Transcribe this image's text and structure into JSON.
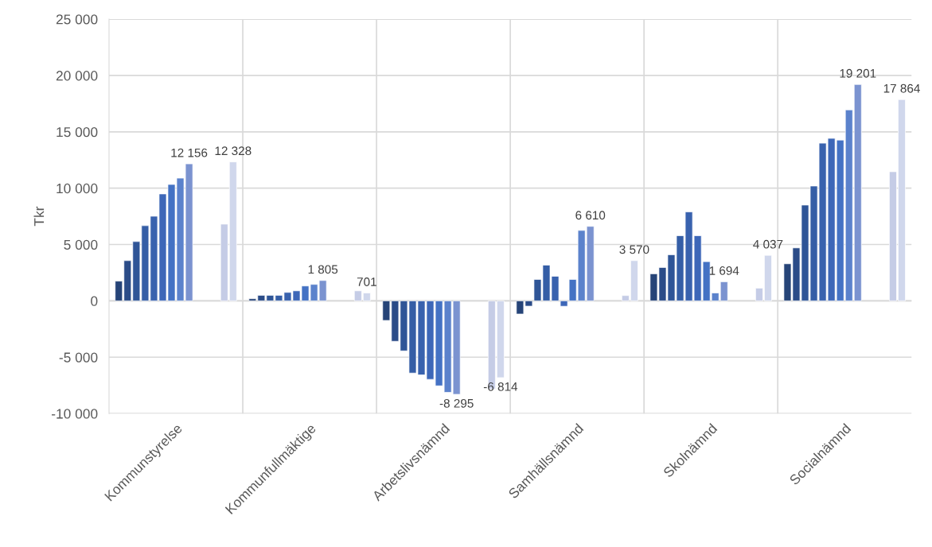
{
  "chart_data": {
    "type": "bar",
    "ylabel": "Tkr",
    "categories": [
      "Kommunstyrelse",
      "Kommunfullmäktige",
      "Arbetslivsnämnd",
      "Samhällsnämnd",
      "Skolnämnd",
      "Socialnämnd"
    ],
    "series": [
      {
        "color": "#264478",
        "values": [
          1750,
          190,
          -1740,
          -1170,
          2400,
          3290
        ]
      },
      {
        "color": "#2b4c88",
        "values": [
          3570,
          490,
          -3590,
          -470,
          2960,
          4700
        ]
      },
      {
        "color": "#2f5597",
        "values": [
          5260,
          490,
          -4440,
          1900,
          4090,
          8500
        ]
      },
      {
        "color": "#355ea6",
        "values": [
          6670,
          490,
          -6410,
          3170,
          5780,
          10190
        ]
      },
      {
        "color": "#3962ae",
        "values": [
          7510,
          750,
          -6570,
          2180,
          7890,
          13990
        ]
      },
      {
        "color": "#3d67b8",
        "values": [
          9490,
          890,
          -6970,
          -480,
          5780,
          14420
        ]
      },
      {
        "color": "#4472c4",
        "values": [
          10330,
          1320,
          -7540,
          1900,
          3480,
          14270
        ]
      },
      {
        "color": "#5b82cc",
        "values": [
          10890,
          1460,
          -8120,
          6250,
          700,
          16950
        ]
      },
      {
        "color": "#7b93d0",
        "values": [
          12156,
          1805,
          -8295,
          6610,
          1694,
          19201
        ],
        "value_labels": [
          "12 156",
          "1 805",
          "-8 295",
          "6 610",
          "1 694",
          "19 201"
        ]
      },
      {
        "values": [
          null,
          null,
          null,
          null,
          null,
          null
        ]
      },
      {
        "values": [
          null,
          null,
          null,
          null,
          null,
          null
        ]
      },
      {
        "values": [
          null,
          null,
          null,
          null,
          null,
          null
        ]
      },
      {
        "color": "#c5cce6",
        "values": [
          6810,
          890,
          -7820,
          470,
          1130,
          11460
        ]
      },
      {
        "color": "#d0d7ec",
        "values": [
          12328,
          701,
          -6814,
          3570,
          4037,
          17864
        ],
        "value_labels": [
          "12 328",
          "701",
          "-6 814",
          "3 570",
          "4 037",
          "17 864"
        ]
      }
    ],
    "ylim": [
      -10000,
      25000
    ],
    "yticks": [
      {
        "value": -10000,
        "label": "-10 000"
      },
      {
        "value": -5000,
        "label": "-5 000"
      },
      0,
      {
        "value": 5000,
        "label": "5 000"
      },
      {
        "value": 10000,
        "label": "10 000"
      },
      {
        "value": 15000,
        "label": "15 000"
      },
      {
        "value": 20000,
        "label": "20 000"
      },
      {
        "value": 25000,
        "label": "25 000"
      }
    ],
    "grid": true
  }
}
